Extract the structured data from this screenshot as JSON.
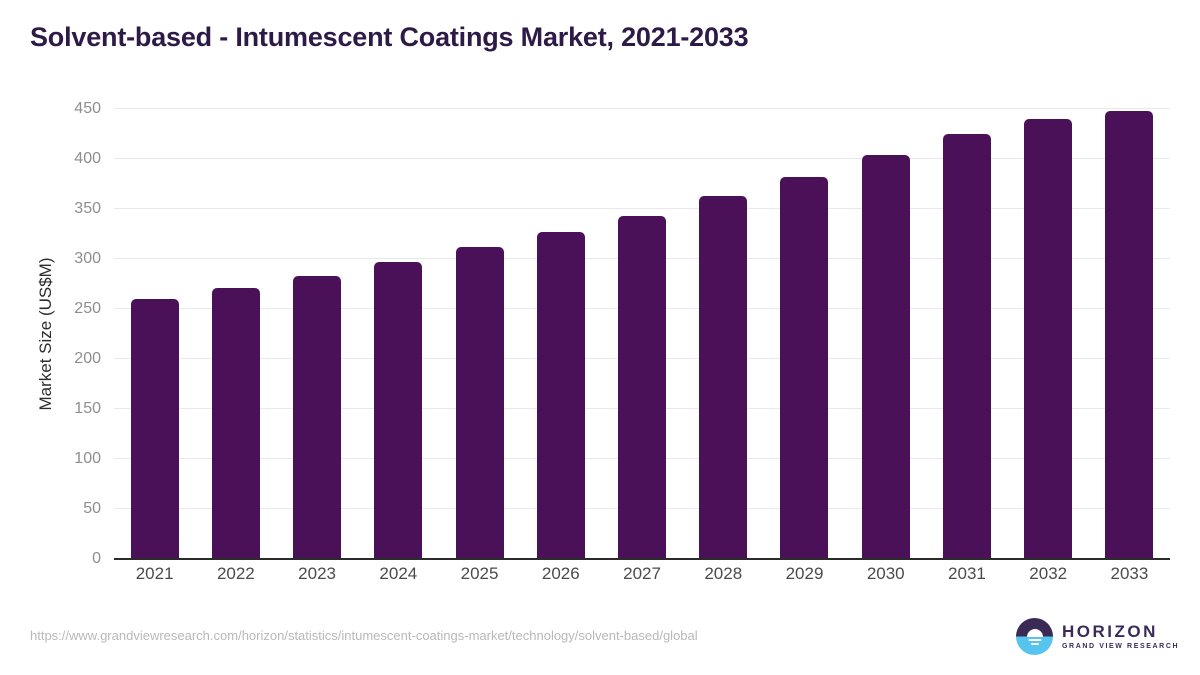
{
  "title": "Solvent-based - Intumescent Coatings Market, 2021-2033",
  "colors": {
    "title": "#2E1A47",
    "bar": "#4A1158",
    "grid": "#E9E9E9",
    "axis": "#2B2B2B",
    "y_tick": "#8E8E8E",
    "x_tick": "#4B4B4B",
    "y_label": "#2D2D2D",
    "url": "#B9B9B9",
    "logo_text": "#3A2B5B",
    "logo_top": "#3A2B55",
    "logo_bottom": "#57C4F0"
  },
  "chart_data": {
    "type": "bar",
    "title": "Solvent-based - Intumescent Coatings Market, 2021-2033",
    "categories": [
      "2021",
      "2022",
      "2023",
      "2024",
      "2025",
      "2026",
      "2027",
      "2028",
      "2029",
      "2030",
      "2031",
      "2032",
      "2033"
    ],
    "values": [
      260,
      271,
      283,
      297,
      312,
      327,
      343,
      363,
      382,
      404,
      425,
      440,
      448
    ],
    "xlabel": "",
    "ylabel": "Market Size (US$M)",
    "ylim": [
      0,
      450
    ],
    "yticks": [
      0,
      50,
      100,
      150,
      200,
      250,
      300,
      350,
      400,
      450
    ],
    "grid": true,
    "legend": false,
    "bar_color": "#4A1158"
  },
  "footer": {
    "source_url": "https://www.grandviewresearch.com/horizon/statistics/intumescent-coatings-market/technology/solvent-based/global",
    "logo_title": "HORIZON",
    "logo_subtitle": "GRAND VIEW RESEARCH"
  }
}
